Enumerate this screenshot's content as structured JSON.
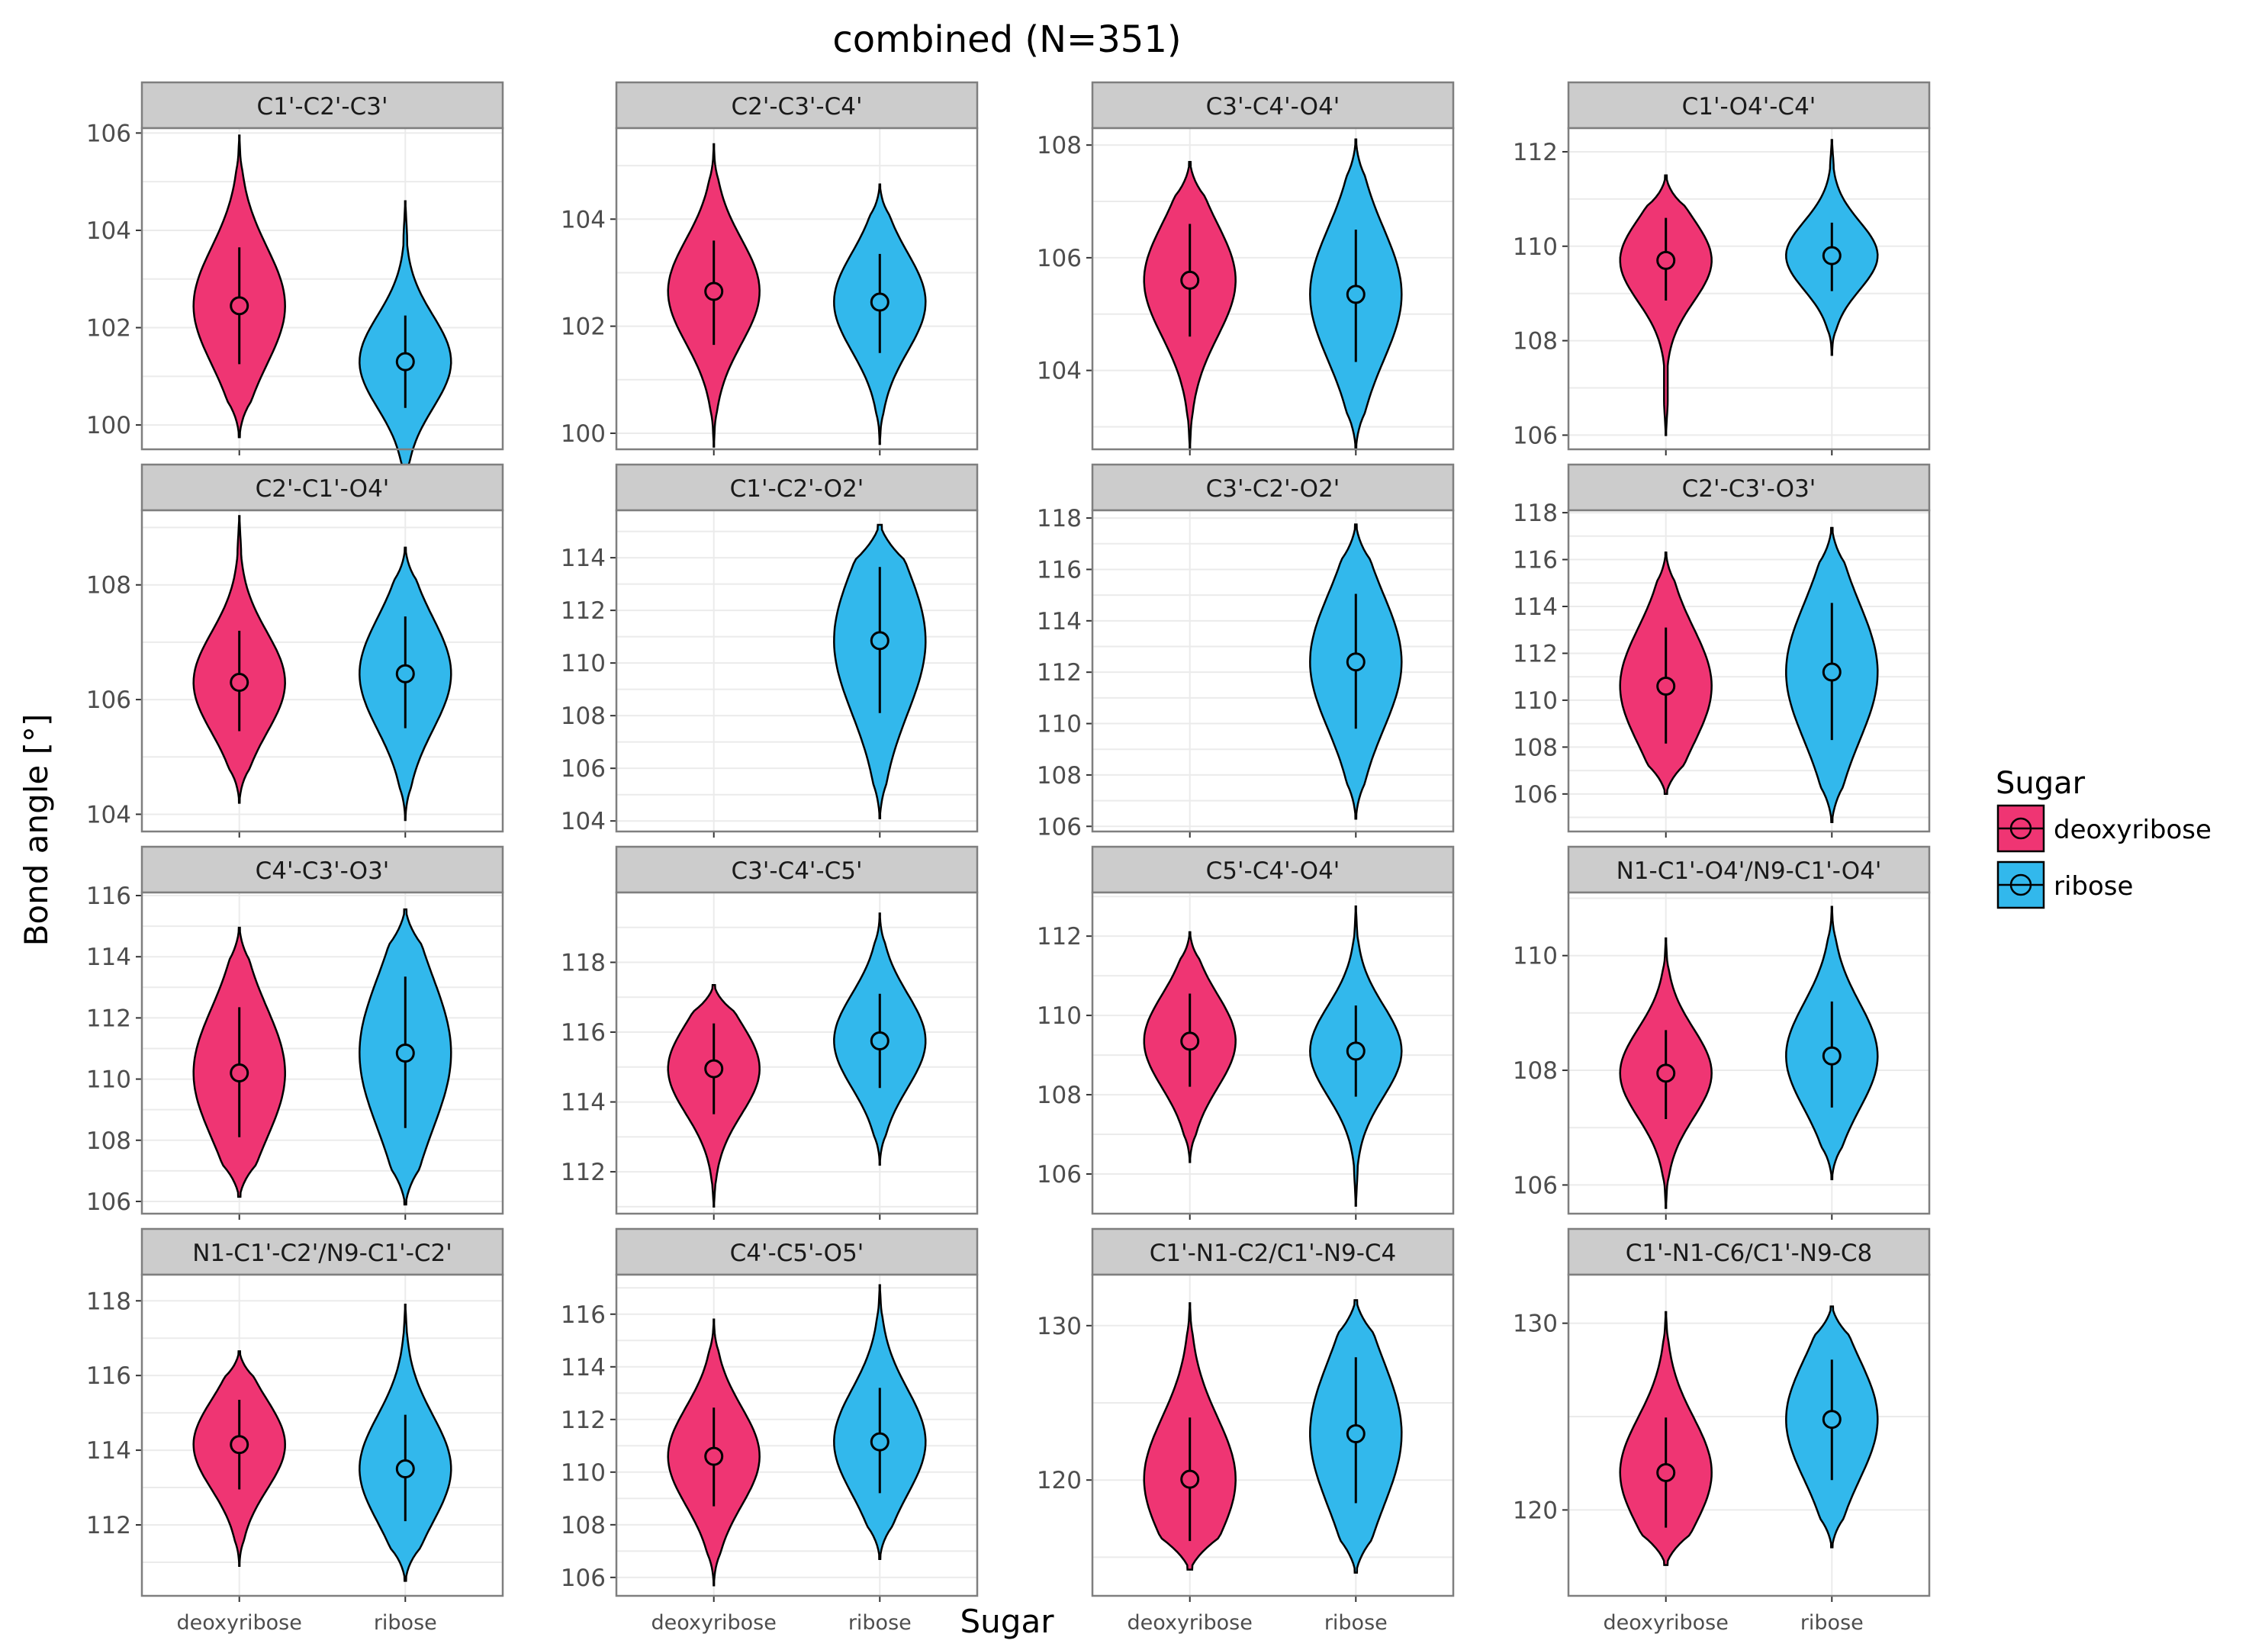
{
  "figure": {
    "title": "combined (N=351)",
    "xlabel": "Sugar",
    "ylabel": "Bond angle [°]"
  },
  "legend": {
    "title": "Sugar",
    "placement": "right",
    "items": [
      {
        "label": "deoxyribose",
        "color": "#ef3573"
      },
      {
        "label": "ribose",
        "color": "#32b8ec"
      }
    ]
  },
  "colors": {
    "deoxyribose": "#ef3573",
    "ribose": "#32b8ec",
    "strip_background": "#cccccc",
    "panel_border": "#7f7f7f",
    "grid": "#ebebeb"
  },
  "chart_data": [
    {
      "type": "violin",
      "title": "C1'-C2'-C3'",
      "categories": [
        "deoxyribose",
        "ribose"
      ],
      "ylim": [
        99.5,
        106.1
      ],
      "yticks": [
        100,
        102,
        104,
        106
      ],
      "series": [
        {
          "name": "deoxyribose",
          "mean": 102.45,
          "sd_low": 101.25,
          "sd_high": 103.65,
          "min": 99.75,
          "max": 105.95
        },
        {
          "name": "ribose",
          "mean": 101.3,
          "sd_low": 100.35,
          "sd_high": 102.25,
          "min": 98.55,
          "max": 104.6
        }
      ]
    },
    {
      "type": "violin",
      "title": "C2'-C3'-C4'",
      "categories": [
        "deoxyribose",
        "ribose"
      ],
      "ylim": [
        99.7,
        105.7
      ],
      "yticks": [
        100,
        102,
        104
      ],
      "series": [
        {
          "name": "deoxyribose",
          "mean": 102.65,
          "sd_low": 101.65,
          "sd_high": 103.6,
          "min": 99.75,
          "max": 105.4
        },
        {
          "name": "ribose",
          "mean": 102.45,
          "sd_low": 101.5,
          "sd_high": 103.35,
          "min": 99.8,
          "max": 104.65
        }
      ]
    },
    {
      "type": "violin",
      "title": "C3'-C4'-O4'",
      "categories": [
        "deoxyribose",
        "ribose"
      ],
      "ylim": [
        102.6,
        108.3
      ],
      "yticks": [
        104,
        106,
        108
      ],
      "series": [
        {
          "name": "deoxyribose",
          "mean": 105.6,
          "sd_low": 104.6,
          "sd_high": 106.6,
          "min": 102.6,
          "max": 107.7
        },
        {
          "name": "ribose",
          "mean": 105.35,
          "sd_low": 104.15,
          "sd_high": 106.5,
          "min": 102.6,
          "max": 108.1
        }
      ]
    },
    {
      "type": "violin",
      "title": "C1'-O4'-C4'",
      "categories": [
        "deoxyribose",
        "ribose"
      ],
      "ylim": [
        105.7,
        112.5
      ],
      "yticks": [
        106,
        108,
        110,
        112
      ],
      "series": [
        {
          "name": "deoxyribose",
          "mean": 109.7,
          "sd_low": 108.85,
          "sd_high": 110.6,
          "min": 106.0,
          "max": 111.5
        },
        {
          "name": "ribose",
          "mean": 109.8,
          "sd_low": 109.05,
          "sd_high": 110.5,
          "min": 107.7,
          "max": 112.25
        }
      ]
    },
    {
      "type": "violin",
      "title": "C2'-C1'-O4'",
      "categories": [
        "deoxyribose",
        "ribose"
      ],
      "ylim": [
        103.7,
        109.3
      ],
      "yticks": [
        104,
        106,
        108
      ],
      "series": [
        {
          "name": "deoxyribose",
          "mean": 106.3,
          "sd_low": 105.45,
          "sd_high": 107.2,
          "min": 104.2,
          "max": 109.2
        },
        {
          "name": "ribose",
          "mean": 106.45,
          "sd_low": 105.5,
          "sd_high": 107.45,
          "min": 103.9,
          "max": 108.65
        }
      ]
    },
    {
      "type": "violin",
      "title": "C1'-C2'-O2'",
      "categories": [
        "deoxyribose",
        "ribose"
      ],
      "ylim": [
        103.6,
        115.8
      ],
      "yticks": [
        104,
        106,
        108,
        110,
        112,
        114
      ],
      "series": [
        {
          "name": "deoxyribose"
        },
        {
          "name": "ribose",
          "mean": 110.85,
          "sd_low": 108.1,
          "sd_high": 113.65,
          "min": 104.1,
          "max": 115.25
        }
      ]
    },
    {
      "type": "violin",
      "title": "C3'-C2'-O2'",
      "categories": [
        "deoxyribose",
        "ribose"
      ],
      "ylim": [
        105.8,
        118.3
      ],
      "yticks": [
        106,
        108,
        110,
        112,
        114,
        116,
        118
      ],
      "series": [
        {
          "name": "deoxyribose"
        },
        {
          "name": "ribose",
          "mean": 112.4,
          "sd_low": 109.8,
          "sd_high": 115.05,
          "min": 106.3,
          "max": 117.75
        }
      ]
    },
    {
      "type": "violin",
      "title": "C2'-C3'-O3'",
      "categories": [
        "deoxyribose",
        "ribose"
      ],
      "ylim": [
        104.4,
        118.1
      ],
      "yticks": [
        106,
        108,
        110,
        112,
        114,
        116,
        118
      ],
      "series": [
        {
          "name": "deoxyribose",
          "mean": 110.6,
          "sd_low": 108.15,
          "sd_high": 113.1,
          "min": 106.0,
          "max": 116.3
        },
        {
          "name": "ribose",
          "mean": 111.2,
          "sd_low": 108.3,
          "sd_high": 114.15,
          "min": 104.8,
          "max": 117.35
        }
      ]
    },
    {
      "type": "violin",
      "title": "C4'-C3'-O3'",
      "categories": [
        "deoxyribose",
        "ribose"
      ],
      "ylim": [
        105.6,
        116.1
      ],
      "yticks": [
        106,
        108,
        110,
        112,
        114,
        116
      ],
      "series": [
        {
          "name": "deoxyribose",
          "mean": 110.2,
          "sd_low": 108.1,
          "sd_high": 112.35,
          "min": 106.15,
          "max": 114.95
        },
        {
          "name": "ribose",
          "mean": 110.85,
          "sd_low": 108.4,
          "sd_high": 113.35,
          "min": 105.9,
          "max": 115.55
        }
      ]
    },
    {
      "type": "violin",
      "title": "C3'-C4'-C5'",
      "categories": [
        "deoxyribose",
        "ribose"
      ],
      "ylim": [
        110.8,
        120.0
      ],
      "yticks": [
        112,
        114,
        116,
        118
      ],
      "series": [
        {
          "name": "deoxyribose",
          "mean": 114.95,
          "sd_low": 113.65,
          "sd_high": 116.25,
          "min": 111.0,
          "max": 117.35
        },
        {
          "name": "ribose",
          "mean": 115.75,
          "sd_low": 114.4,
          "sd_high": 117.1,
          "min": 112.2,
          "max": 119.4
        }
      ]
    },
    {
      "type": "violin",
      "title": "C5'-C4'-O4'",
      "categories": [
        "deoxyribose",
        "ribose"
      ],
      "ylim": [
        105.0,
        113.1
      ],
      "yticks": [
        106,
        108,
        110,
        112
      ],
      "series": [
        {
          "name": "deoxyribose",
          "mean": 109.35,
          "sd_low": 108.2,
          "sd_high": 110.55,
          "min": 106.3,
          "max": 112.1
        },
        {
          "name": "ribose",
          "mean": 109.1,
          "sd_low": 107.95,
          "sd_high": 110.25,
          "min": 105.2,
          "max": 112.75
        }
      ]
    },
    {
      "type": "violin",
      "title": "N1-C1'-O4'/N9-C1'-O4'",
      "categories": [
        "deoxyribose",
        "ribose"
      ],
      "ylim": [
        105.5,
        111.1
      ],
      "yticks": [
        106,
        108,
        110
      ],
      "series": [
        {
          "name": "deoxyribose",
          "mean": 107.95,
          "sd_low": 107.15,
          "sd_high": 108.7,
          "min": 105.6,
          "max": 110.3
        },
        {
          "name": "ribose",
          "mean": 108.25,
          "sd_low": 107.35,
          "sd_high": 109.2,
          "min": 106.1,
          "max": 110.85
        }
      ]
    },
    {
      "type": "violin",
      "title": "N1-C1'-C2'/N9-C1'-C2'",
      "categories": [
        "deoxyribose",
        "ribose"
      ],
      "ylim": [
        110.1,
        118.7
      ],
      "yticks": [
        112,
        114,
        116,
        118
      ],
      "series": [
        {
          "name": "deoxyribose",
          "mean": 114.15,
          "sd_low": 112.95,
          "sd_high": 115.35,
          "min": 110.9,
          "max": 116.65
        },
        {
          "name": "ribose",
          "mean": 113.5,
          "sd_low": 112.1,
          "sd_high": 114.95,
          "min": 110.5,
          "max": 117.9
        }
      ]
    },
    {
      "type": "violin",
      "title": "C4'-C5'-O5'",
      "categories": [
        "deoxyribose",
        "ribose"
      ],
      "ylim": [
        105.3,
        117.5
      ],
      "yticks": [
        106,
        108,
        110,
        112,
        114,
        116
      ],
      "series": [
        {
          "name": "deoxyribose",
          "mean": 110.6,
          "sd_low": 108.7,
          "sd_high": 112.45,
          "min": 105.7,
          "max": 115.8
        },
        {
          "name": "ribose",
          "mean": 111.15,
          "sd_low": 109.2,
          "sd_high": 113.2,
          "min": 106.7,
          "max": 117.1
        }
      ]
    },
    {
      "type": "violin",
      "title": "C1'-N1-C2/C1'-N9-C4",
      "categories": [
        "deoxyribose",
        "ribose"
      ],
      "ylim": [
        112.5,
        133.3
      ],
      "yticks": [
        120,
        130
      ],
      "series": [
        {
          "name": "deoxyribose",
          "mean": 120.05,
          "sd_low": 116.05,
          "sd_high": 124.05,
          "min": 114.2,
          "max": 131.45
        },
        {
          "name": "ribose",
          "mean": 123.0,
          "sd_low": 118.5,
          "sd_high": 127.95,
          "min": 114.0,
          "max": 131.65
        }
      ]
    },
    {
      "type": "violin",
      "title": "C1'-N1-C6/C1'-N9-C8",
      "categories": [
        "deoxyribose",
        "ribose"
      ],
      "ylim": [
        115.4,
        132.6
      ],
      "yticks": [
        120,
        130
      ],
      "series": [
        {
          "name": "deoxyribose",
          "mean": 122.0,
          "sd_low": 119.05,
          "sd_high": 124.95,
          "min": 117.05,
          "max": 130.6
        },
        {
          "name": "ribose",
          "mean": 124.85,
          "sd_low": 121.6,
          "sd_high": 128.05,
          "min": 118.0,
          "max": 130.9
        }
      ]
    }
  ]
}
